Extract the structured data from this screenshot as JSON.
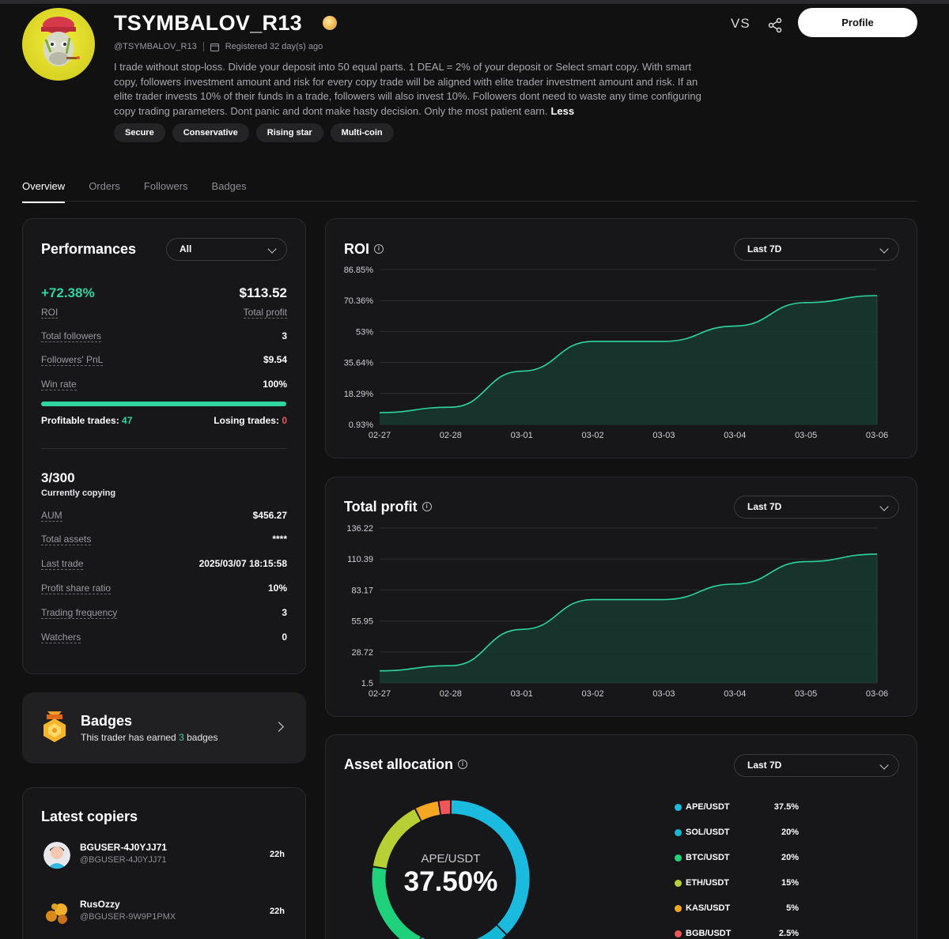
{
  "trader": {
    "name": "TSYMBALOV_R13",
    "handle": "@TSYMBALOV_R13",
    "registered": "Registered 32 day(s) ago",
    "bio": "I trade without stop-loss. Divide your deposit into 50 equal parts. 1 DEAL = 2% of your deposit or Select smart copy. With smart copy, followers investment amount and risk for every copy trade will be aligned with elite trader investment amount and risk. If an elite trader invests 10% of their funds in a trade, followers will also invest 10%. Followers dont need to waste any time configuring copy trading parameters. Dont panic and dont make hasty decision. Only the most patient earn.",
    "bio_toggle": "Less",
    "tags": [
      "Secure",
      "Conservative",
      "Rising star",
      "Multi-coin"
    ]
  },
  "header": {
    "vs_label": "VS",
    "profile_button": "Profile"
  },
  "tabs": [
    "Overview",
    "Orders",
    "Followers",
    "Badges"
  ],
  "performance": {
    "title": "Performances",
    "filter": "All",
    "roi_value": "+72.38%",
    "roi_label": "ROI",
    "profit_value": "$113.52",
    "profit_label": "Total profit",
    "rows": [
      {
        "label": "Total followers",
        "value": "3"
      },
      {
        "label": "Followers' PnL",
        "value": "$9.54"
      },
      {
        "label": "Win rate",
        "value": "100%"
      }
    ],
    "win_rate_fraction": 1.0,
    "profitable_label": "Profitable trades:",
    "profitable_value": "47",
    "losing_label": "Losing trades:",
    "losing_value": "0",
    "copying_value": "3/300",
    "copying_label": "Currently copying",
    "rows2": [
      {
        "label": "AUM",
        "value": "$456.27"
      },
      {
        "label": "Total assets",
        "value": "****"
      },
      {
        "label": "Last trade",
        "value": "2025/03/07 18:15:58"
      },
      {
        "label": "Profit share ratio",
        "value": "10%"
      },
      {
        "label": "Trading frequency",
        "value": "3"
      },
      {
        "label": "Watchers",
        "value": "0"
      }
    ]
  },
  "badges": {
    "title": "Badges",
    "sub_prefix": "This trader has earned",
    "count": "3",
    "sub_suffix": "badges"
  },
  "copiers": {
    "title": "Latest copiers",
    "items": [
      {
        "name": "BGUSER-4J0YJJ71",
        "handle": "@BGUSER-4J0YJJ71",
        "time": "22h"
      },
      {
        "name": "RusOzzy",
        "handle": "@BGUSER-9W9P1PMX",
        "time": "22h"
      }
    ]
  },
  "roi_card": {
    "title": "ROI",
    "range": "Last 7D"
  },
  "profit_card": {
    "title": "Total profit",
    "range": "Last 7D"
  },
  "allocation_card": {
    "title": "Asset allocation",
    "range": "Last 7D",
    "center_label": "APE/USDT",
    "center_value": "37.50%"
  },
  "chart_data": [
    {
      "type": "area",
      "title": "ROI",
      "x": [
        "02-27",
        "02-28",
        "03-01",
        "03-02",
        "03-03",
        "03-04",
        "03-05",
        "03-06"
      ],
      "y_ticks": [
        "86.85%",
        "70.36%",
        "53%",
        "35.64%",
        "18.29%",
        "0.93%"
      ],
      "ylim": [
        0.93,
        86.85
      ],
      "series": [
        {
          "values": [
            7.5,
            10.5,
            30.5,
            47.0,
            47.0,
            55.5,
            68.5,
            72.38
          ]
        }
      ],
      "color": "#2fd59c"
    },
    {
      "type": "area",
      "title": "Total profit",
      "x": [
        "02-27",
        "02-28",
        "03-01",
        "03-02",
        "03-03",
        "03-04",
        "03-05",
        "03-06"
      ],
      "y_ticks": [
        "136.22",
        "110.39",
        "83.17",
        "55.95",
        "28.72",
        "1.5"
      ],
      "ylim": [
        1.5,
        136.22
      ],
      "series": [
        {
          "values": [
            12.0,
            16.5,
            48.0,
            74.0,
            74.0,
            87.5,
            107.0,
            113.52
          ]
        }
      ],
      "color": "#2fd59c"
    },
    {
      "type": "pie",
      "title": "Asset allocation",
      "categories": [
        "APE/USDT",
        "SOL/USDT",
        "BTC/USDT",
        "ETH/USDT",
        "KAS/USDT",
        "BGB/USDT"
      ],
      "labels": [
        "37.5%",
        "20%",
        "20%",
        "15%",
        "5%",
        "2.5%"
      ],
      "values": [
        37.5,
        20,
        20,
        15,
        5,
        2.5
      ],
      "colors": [
        "#1bbbe0",
        "#14b8d4",
        "#1fd17a",
        "#b8cf35",
        "#f5a623",
        "#f0555a"
      ]
    }
  ]
}
